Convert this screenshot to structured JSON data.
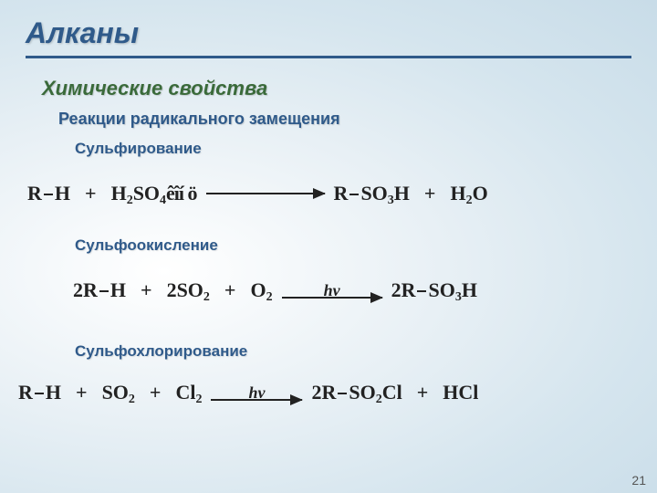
{
  "title": "Алканы",
  "subtitle": "Химические свойства",
  "subsubtitle": "Реакции радикального замещения",
  "sections": {
    "s1": "Сульфирование",
    "s2": "Сульфоокисление",
    "s3": "Сульфохлорирование"
  },
  "eq1": {
    "lhs1a": "R",
    "lhs1b": "H",
    "lhs2a": "H",
    "lhs2b": "2",
    "lhs2c": "SO",
    "lhs2d": "4",
    "lhs2e": "êîí ö",
    "rhs1a": "R",
    "rhs1b": "SO",
    "rhs1c": "3",
    "rhs1d": "H",
    "rhs2a": "H",
    "rhs2b": "2",
    "rhs2c": "O",
    "arrow_w": 130
  },
  "eq2": {
    "lhs1a": "2R",
    "lhs1b": "H",
    "lhs2a": "2SO",
    "lhs2b": "2",
    "lhs3a": "O",
    "lhs3b": "2",
    "cond": "hν",
    "rhs1a": "2R",
    "rhs1b": "SO",
    "rhs1c": "3",
    "rhs1d": "H",
    "arrow_w": 110
  },
  "eq3": {
    "lhs1a": "R",
    "lhs1b": "H",
    "lhs2a": "SO",
    "lhs2b": "2",
    "lhs3a": "Cl",
    "lhs3b": "2",
    "cond": "hν",
    "rhs1a": "2R",
    "rhs1b": "SO",
    "rhs1c": "2",
    "rhs1d": "Cl",
    "rhs2": "HCl",
    "arrow_w": 100
  },
  "pagenum": "21",
  "colors": {
    "title": "#2f5a8a",
    "subtitle": "#3a6a3a",
    "text": "#222222"
  }
}
